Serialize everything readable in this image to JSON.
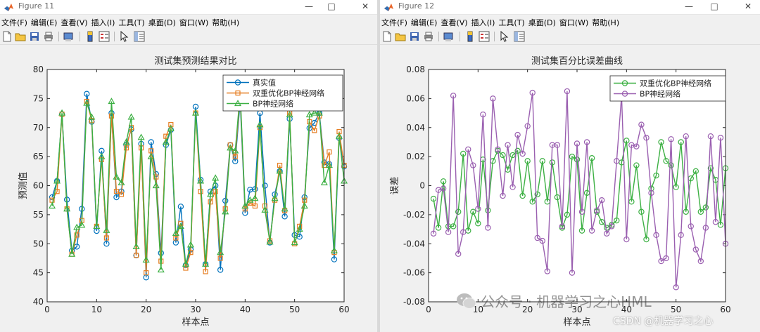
{
  "windows": [
    {
      "title": "Figure 11",
      "menu": [
        "文件(F)",
        "编辑(E)",
        "查看(V)",
        "插入(I)",
        "工具(T)",
        "桌面(D)",
        "窗口(W)",
        "帮助(H)"
      ]
    },
    {
      "title": "Figure 12",
      "menu": [
        "文件(F)",
        "编辑(E)",
        "查看(V)",
        "插入(I)",
        "工具(T)",
        "桌面(D)",
        "窗口(W)",
        "帮助(H)"
      ]
    }
  ],
  "toolbar_icons": [
    "new-file-icon",
    "open-folder-icon",
    "save-icon",
    "print-icon",
    "print-preview-icon",
    "colorbar-icon",
    "legend-icon",
    "pointer-icon",
    "property-inspector-icon"
  ],
  "watermark": {
    "text": "公众号 · 机器学习之心HML",
    "csdn": "CSDN @机器学习之心"
  },
  "colors": {
    "series_true": "#0072bd",
    "series_opt": "#e67e22",
    "series_bp": "#3cb043",
    "series_err_opt": "#3cb043",
    "series_err_bp": "#9a5fb0"
  },
  "chart_data": [
    {
      "type": "line",
      "title": "测试集预测结果对比",
      "xlabel": "样本点",
      "ylabel": "预测值",
      "xlim": [
        0,
        60
      ],
      "ylim": [
        40,
        80
      ],
      "xticks": [
        0,
        10,
        20,
        30,
        40,
        50,
        60
      ],
      "yticks": [
        40,
        45,
        50,
        55,
        60,
        65,
        70,
        75,
        80
      ],
      "grid": false,
      "legend_position": "top-right",
      "x": [
        1,
        2,
        3,
        4,
        5,
        6,
        7,
        8,
        9,
        10,
        11,
        12,
        13,
        14,
        15,
        16,
        17,
        18,
        19,
        20,
        21,
        22,
        23,
        24,
        25,
        26,
        27,
        28,
        29,
        30,
        31,
        32,
        33,
        34,
        35,
        36,
        37,
        38,
        39,
        40,
        41,
        42,
        43,
        44,
        45,
        46,
        47,
        48,
        49,
        50,
        51,
        52,
        53,
        54,
        55,
        56,
        57,
        58,
        59,
        60
      ],
      "series": [
        {
          "name": "真实值",
          "marker": "circle",
          "values": [
            58,
            60.8,
            72.3,
            57.6,
            48.8,
            49.5,
            56,
            75.8,
            71,
            52.2,
            66,
            50,
            72.5,
            58,
            59,
            67,
            69.7,
            48,
            67.2,
            44.2,
            67.5,
            62,
            48.4,
            67,
            69.6,
            50.2,
            56.4,
            46.3,
            49,
            73.6,
            61,
            46.5,
            59,
            60,
            45.5,
            57.4,
            67,
            64.2,
            74.5,
            55.3,
            59.3,
            59.4,
            72.5,
            60,
            50.2,
            58.5,
            62.5,
            54.7,
            71.5,
            51.5,
            51.2,
            58,
            69.9,
            70.8,
            72.5,
            64,
            63.7,
            47.3,
            68.2,
            63.3
          ]
        },
        {
          "name": "双重优化BP神经网络",
          "marker": "square",
          "values": [
            57.5,
            59,
            72.3,
            56,
            48.2,
            51.5,
            54,
            74.5,
            71.2,
            53,
            64.5,
            51,
            72,
            59,
            58.5,
            66.5,
            70,
            48,
            66.5,
            45,
            66,
            61.5,
            47,
            68.5,
            70.5,
            51,
            53.5,
            45.8,
            48.5,
            72.5,
            59,
            45.2,
            57.2,
            59,
            47.5,
            56,
            67,
            65,
            75.5,
            56,
            57,
            56.5,
            70,
            56.5,
            50.5,
            57.5,
            63.5,
            55.7,
            72.5,
            50,
            53,
            57.5,
            71,
            69.5,
            72,
            63.5,
            65.8,
            48.5,
            69.3,
            63.5
          ]
        },
        {
          "name": "BP神经网络",
          "marker": "triangle",
          "values": [
            56.5,
            60.8,
            72.5,
            56,
            48.2,
            52.8,
            53.2,
            74.2,
            71.8,
            53,
            65,
            52.3,
            74.5,
            61.5,
            60.5,
            67.5,
            71.8,
            49.5,
            68.3,
            47.2,
            65,
            60,
            45.5,
            67.5,
            69.8,
            51.8,
            53,
            46.5,
            49.8,
            72.5,
            60.8,
            46.5,
            58.5,
            61.3,
            48.5,
            55.5,
            66.5,
            66,
            76,
            56.5,
            57.5,
            57.8,
            70.5,
            55.8,
            50.3,
            57.8,
            62.5,
            56,
            72.2,
            50.2,
            52.5,
            56.5,
            72.2,
            72.5,
            72.5,
            60.5,
            63.5,
            48.8,
            68.5,
            60.8
          ]
        }
      ]
    },
    {
      "type": "line",
      "title": "测试集百分比误差曲线",
      "xlabel": "样本点",
      "ylabel": "误差",
      "xlim": [
        0,
        60
      ],
      "ylim": [
        -0.08,
        0.08
      ],
      "xticks": [
        0,
        10,
        20,
        30,
        40,
        50,
        60
      ],
      "yticks": [
        -0.08,
        -0.06,
        -0.04,
        -0.02,
        0,
        0.02,
        0.04,
        0.06,
        0.08
      ],
      "grid": false,
      "legend_position": "top-right",
      "x": [
        1,
        2,
        3,
        4,
        5,
        6,
        7,
        8,
        9,
        10,
        11,
        12,
        13,
        14,
        15,
        16,
        17,
        18,
        19,
        20,
        21,
        22,
        23,
        24,
        25,
        26,
        27,
        28,
        29,
        30,
        31,
        32,
        33,
        34,
        35,
        36,
        37,
        38,
        39,
        40,
        41,
        42,
        43,
        44,
        45,
        46,
        47,
        48,
        49,
        50,
        51,
        52,
        53,
        54,
        55,
        56,
        57,
        58,
        59,
        60
      ],
      "series": [
        {
          "name": "双重优化BP神经网络",
          "marker": "circle",
          "values": [
            -0.009,
            -0.029,
            0.003,
            -0.028,
            -0.028,
            -0.018,
            0.022,
            -0.031,
            -0.018,
            -0.026,
            0.018,
            -0.017,
            0.017,
            0.024,
            0.021,
            0.011,
            0.021,
            0.024,
            -0.007,
            0.017,
            -0.011,
            -0.006,
            0.017,
            -0.011,
            0.016,
            -0.008,
            -0.029,
            -0.02,
            0.02,
            0.018,
            -0.031,
            -0.005,
            0.019,
            -0.018,
            -0.025,
            -0.029,
            -0.027,
            -0.024,
            0.016,
            0.031,
            -0.011,
            0.014,
            -0.018,
            -0.037,
            -0.002,
            0.007,
            0.03,
            0.017,
            0.014,
            -0.001,
            0.03,
            -0.018,
            0.005,
            0.01,
            -0.018,
            -0.015,
            0.012,
            0.004,
            -0.027,
            0.012
          ]
        },
        {
          "name": "BP神经网络",
          "marker": "circle",
          "values": [
            -0.033,
            -0.003,
            -0.002,
            -0.032,
            0.062,
            -0.047,
            -0.032,
            0.025,
            0.014,
            -0.016,
            0.049,
            -0.029,
            0.06,
            0.025,
            -0.007,
            0.028,
            -0.001,
            0.035,
            0.022,
            0.041,
            0.064,
            -0.036,
            -0.038,
            -0.059,
            0.028,
            0.028,
            -0.028,
            0.065,
            -0.06,
            0.029,
            -0.018,
            0.03,
            -0.031,
            -0.017,
            -0.01,
            -0.033,
            -0.028,
            0.017,
            0.062,
            -0.037,
            0.028,
            0.027,
            0.042,
            0.033,
            -0.005,
            -0.034,
            -0.052,
            -0.05,
            0.032,
            -0.07,
            -0.034,
            0.034,
            -0.028,
            -0.044,
            -0.052,
            -0.029,
            0.034,
            -0.025,
            0.033,
            -0.04
          ]
        }
      ]
    }
  ]
}
